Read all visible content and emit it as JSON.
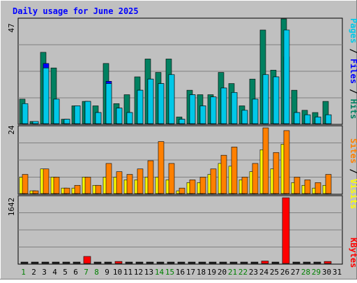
{
  "title": "Daily usage for June 2025",
  "panels": {
    "top": {
      "max_label": "47",
      "legend": [
        {
          "text": "Pages",
          "color": "#00c8e8"
        },
        {
          "text": " / ",
          "color": "#000000"
        },
        {
          "text": "Files",
          "color": "#0000ff"
        },
        {
          "text": " / ",
          "color": "#000000"
        },
        {
          "text": "Hits",
          "color": "#008060"
        }
      ]
    },
    "middle": {
      "max_label": "24",
      "legend": [
        {
          "text": "Sites",
          "color": "#ff8000"
        },
        {
          "text": " / ",
          "color": "#000000"
        },
        {
          "text": "Visits",
          "color": "#ffff00"
        }
      ]
    },
    "bottom": {
      "max_label": "1642",
      "legend": [
        {
          "text": "KBytes",
          "color": "#ff0000"
        }
      ]
    }
  },
  "colors": {
    "background": "#c0c0c0",
    "plot_bg": "#c0c0c0",
    "title": "#0000ff",
    "hits": "#008060",
    "files": "#0000ff",
    "pages": "#00c8e8",
    "visits": "#ffff00",
    "sites": "#ff8000",
    "kbytes": "#ff0000",
    "weekday_label": "#000000",
    "weekend_label": "#008000"
  },
  "chart_data": {
    "type": "bar",
    "title": "Daily usage for June 2025",
    "categories": [
      "1",
      "2",
      "3",
      "4",
      "5",
      "6",
      "7",
      "8",
      "9",
      "10",
      "11",
      "12",
      "13",
      "14",
      "15",
      "16",
      "17",
      "18",
      "19",
      "20",
      "21",
      "22",
      "23",
      "24",
      "25",
      "26",
      "27",
      "28",
      "29",
      "30",
      "31"
    ],
    "weekend_days": [
      "1",
      "7",
      "8",
      "14",
      "15",
      "21",
      "22",
      "28",
      "29"
    ],
    "panels": [
      {
        "name": "top",
        "ymax": 47,
        "series": [
          {
            "name": "Hits",
            "values": [
              11,
              1,
              32,
              25,
              2,
              8,
              10,
              8,
              27,
              9,
              13,
              21,
              29,
              23,
              29,
              3,
              15,
              13,
              13,
              23,
              18,
              8,
              20,
              42,
              24,
              47,
              15,
              6,
              5,
              10,
              0
            ]
          },
          {
            "name": "Files",
            "values": [
              8,
              1,
              27,
              11,
              2,
              8,
              10,
              5,
              19,
              7,
              5,
              15,
              20,
              18,
              22,
              2,
              13,
              8,
              12,
              16,
              14,
              6,
              11,
              22,
              21,
              30,
              5,
              4,
              3,
              4,
              0
            ]
          },
          {
            "name": "Pages",
            "values": [
              9,
              1,
              25,
              11,
              2,
              8,
              10,
              5,
              18,
              7,
              5,
              15,
              20,
              18,
              22,
              2,
              13,
              8,
              12,
              16,
              14,
              6,
              11,
              22,
              21,
              42,
              5,
              4,
              3,
              4,
              0
            ]
          }
        ]
      },
      {
        "name": "middle",
        "ymax": 24,
        "series": [
          {
            "name": "Visits",
            "values": [
              6,
              1,
              9,
              6,
              2,
              2,
              6,
              3,
              6,
              6,
              5,
              5,
              6,
              6,
              5,
              1,
              4,
              4,
              7,
              11,
              10,
              5,
              8,
              16,
              9,
              18,
              4,
              3,
              2,
              3,
              0
            ]
          },
          {
            "name": "Sites",
            "values": [
              7,
              1,
              9,
              6,
              2,
              3,
              6,
              3,
              11,
              8,
              7,
              9,
              12,
              19,
              11,
              2,
              5,
              6,
              9,
              14,
              17,
              6,
              11,
              24,
              15,
              23,
              6,
              5,
              4,
              7,
              0
            ]
          }
        ]
      },
      {
        "name": "bottom",
        "ymax": 1642,
        "series": [
          {
            "name": "KBytes",
            "values": [
              10,
              10,
              10,
              10,
              10,
              10,
              175,
              10,
              20,
              50,
              10,
              10,
              10,
              10,
              10,
              10,
              10,
              10,
              10,
              20,
              10,
              10,
              10,
              60,
              10,
              1642,
              10,
              10,
              10,
              50,
              0
            ]
          }
        ]
      }
    ]
  }
}
